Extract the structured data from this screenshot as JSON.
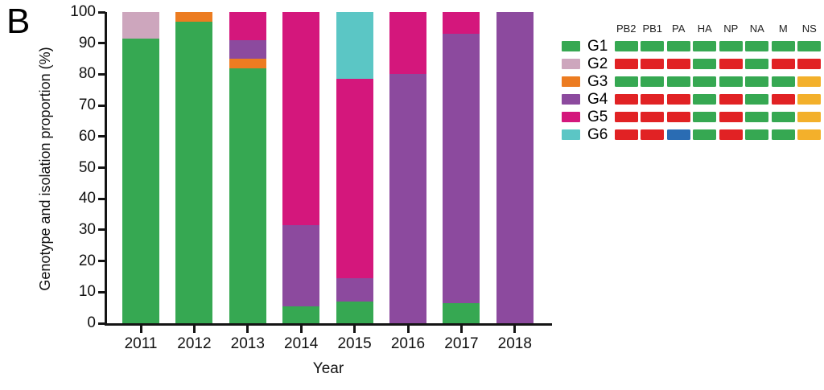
{
  "panel_label": "B",
  "chart_data": {
    "type": "bar",
    "stacked": true,
    "title": "",
    "xlabel": "Year",
    "ylabel": "Genotype and isolation proportion (%)",
    "ylim": [
      0,
      100
    ],
    "ytick_step": 10,
    "grid": false,
    "legend_position": "right",
    "categories": [
      "2011",
      "2012",
      "2013",
      "2014",
      "2015",
      "2016",
      "2017",
      "2018"
    ],
    "series": [
      {
        "name": "G1",
        "color": "#36a852",
        "values": [
          91.5,
          97,
          82,
          5.5,
          7,
          0,
          6.5,
          0
        ]
      },
      {
        "name": "G2",
        "color": "#cda6bd",
        "values": [
          8.5,
          0,
          0,
          0,
          0,
          0,
          0,
          0
        ]
      },
      {
        "name": "G3",
        "color": "#ec7c21",
        "values": [
          0,
          3,
          3,
          0,
          0,
          0,
          0,
          0
        ]
      },
      {
        "name": "G4",
        "color": "#8c4a9e",
        "values": [
          0,
          0,
          6,
          26,
          7.5,
          80,
          86.5,
          100
        ]
      },
      {
        "name": "G5",
        "color": "#d4177c",
        "values": [
          0,
          0,
          9,
          68.5,
          64,
          20,
          7,
          0
        ]
      },
      {
        "name": "G6",
        "color": "#5bc6c5",
        "values": [
          0,
          0,
          0,
          0,
          21.5,
          0,
          0,
          0
        ]
      }
    ]
  },
  "legend_table": {
    "gene_columns": [
      "PB2",
      "PB1",
      "PA",
      "HA",
      "NP",
      "NA",
      "M",
      "NS"
    ],
    "cell_colors": {
      "green": "#36a852",
      "red": "#e12224",
      "yellow": "#f3b02b",
      "blue": "#2a6cb3"
    },
    "rows": [
      {
        "label": "G1",
        "swatch": "#36a852",
        "cells": [
          "green",
          "green",
          "green",
          "green",
          "green",
          "green",
          "green",
          "green"
        ]
      },
      {
        "label": "G2",
        "swatch": "#cda6bd",
        "cells": [
          "red",
          "red",
          "red",
          "green",
          "red",
          "green",
          "red",
          "red"
        ]
      },
      {
        "label": "G3",
        "swatch": "#ec7c21",
        "cells": [
          "green",
          "green",
          "green",
          "green",
          "green",
          "green",
          "green",
          "yellow"
        ]
      },
      {
        "label": "G4",
        "swatch": "#8c4a9e",
        "cells": [
          "red",
          "red",
          "red",
          "green",
          "red",
          "green",
          "red",
          "yellow"
        ]
      },
      {
        "label": "G5",
        "swatch": "#d4177c",
        "cells": [
          "red",
          "red",
          "red",
          "green",
          "red",
          "green",
          "green",
          "yellow"
        ]
      },
      {
        "label": "G6",
        "swatch": "#5bc6c5",
        "cells": [
          "red",
          "red",
          "blue",
          "green",
          "red",
          "green",
          "green",
          "yellow"
        ]
      }
    ]
  }
}
